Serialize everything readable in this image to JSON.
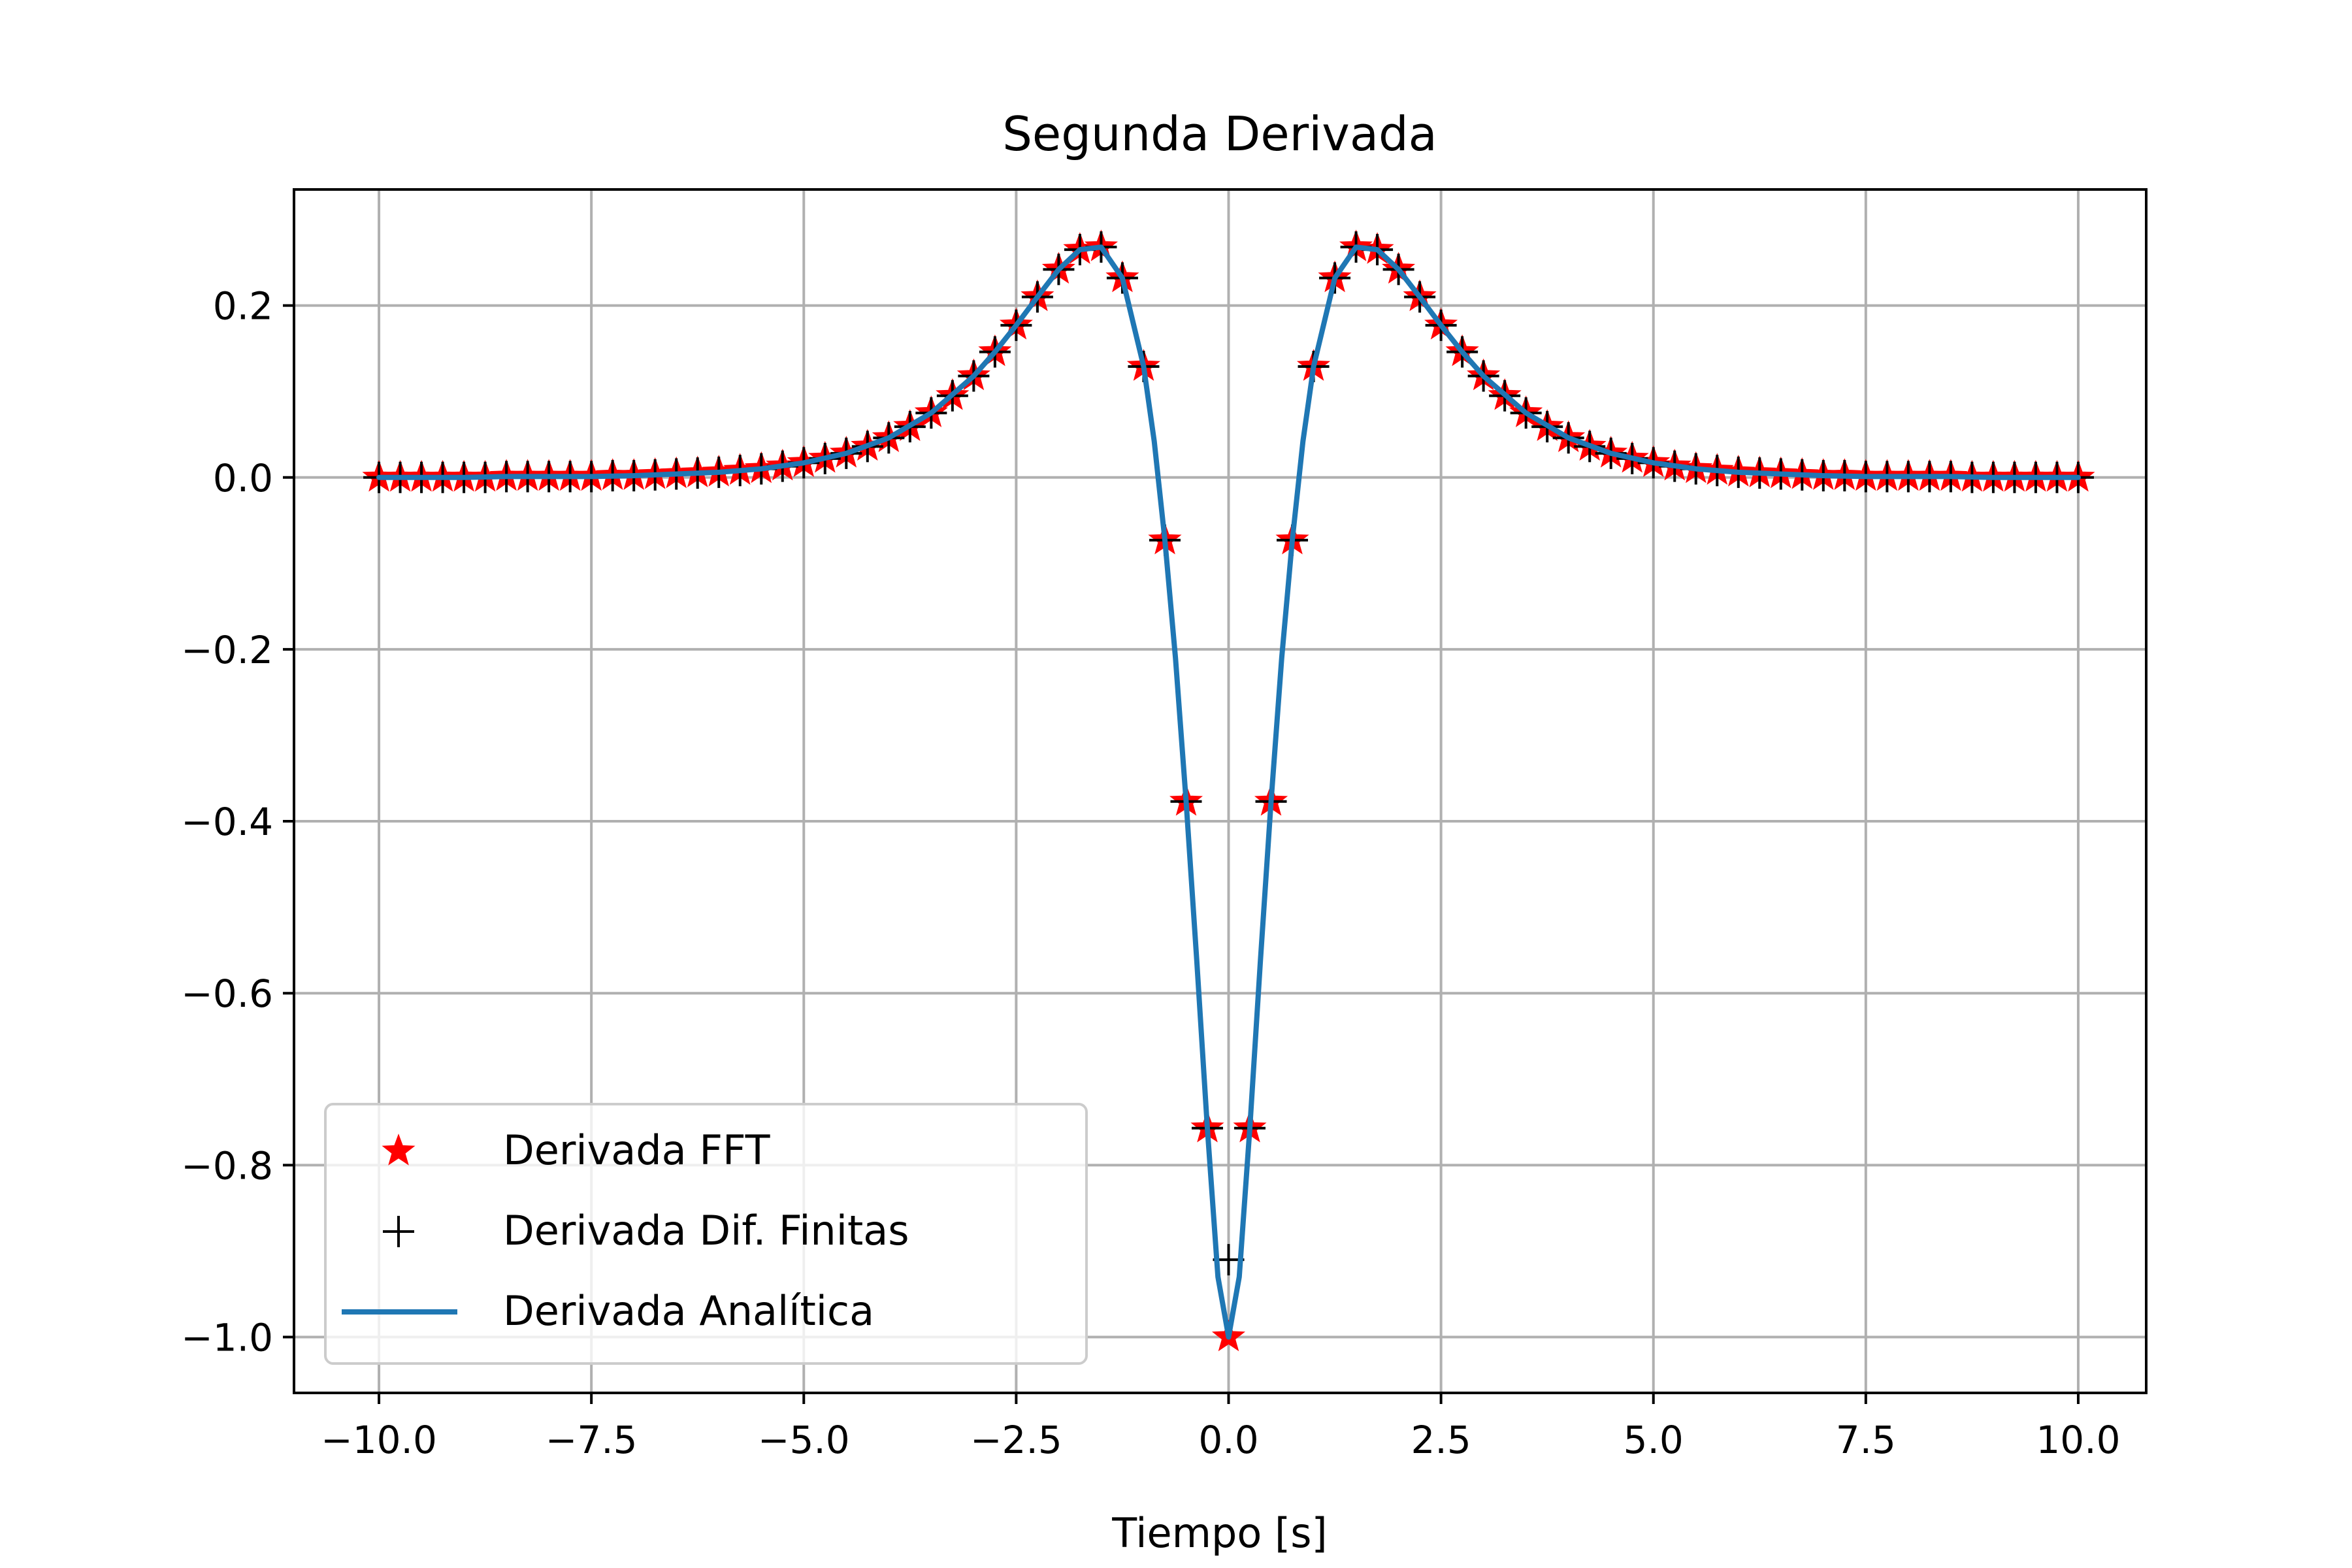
{
  "chart_data": {
    "type": "line",
    "title": "Segunda Derivada",
    "xlabel": "Tiempo [s]",
    "ylabel": "",
    "xlim": [
      -11,
      10.8
    ],
    "ylim": [
      -1.065,
      0.335
    ],
    "x_ticks": [
      -10.0,
      -7.5,
      -5.0,
      -2.5,
      0.0,
      2.5,
      5.0,
      7.5,
      10.0
    ],
    "x_tick_labels": [
      "−10.0",
      "−7.5",
      "−5.0",
      "−2.5",
      "0.0",
      "2.5",
      "5.0",
      "7.5",
      "10.0"
    ],
    "y_ticks": [
      0.2,
      0.0,
      -0.2,
      -0.4,
      -0.6,
      -0.8,
      -1.0
    ],
    "y_tick_labels": [
      "0.2",
      "0.0",
      "−0.2",
      "−0.4",
      "−0.6",
      "−0.8",
      "−1.0"
    ],
    "grid": true,
    "legend_position": "lower-left",
    "series": [
      {
        "name": "Derivada FFT",
        "marker": "star",
        "color": "#ff0000",
        "x": [
          -10,
          -9.75,
          -9.5,
          -9.25,
          -9,
          -8.75,
          -8.5,
          -8.25,
          -8,
          -7.75,
          -7.5,
          -7.25,
          -7,
          -6.75,
          -6.5,
          -6.25,
          -6,
          -5.75,
          -5.5,
          -5.25,
          -5,
          -4.75,
          -4.5,
          -4.25,
          -4,
          -3.75,
          -3.5,
          -3.25,
          -3,
          -2.75,
          -2.5,
          -2.25,
          -2,
          -1.75,
          -1.5,
          -1.25,
          -1,
          -0.75,
          -0.5,
          -0.25,
          0,
          0.25,
          0.5,
          0.75,
          1,
          1.25,
          1.5,
          1.75,
          2,
          2.25,
          2.5,
          2.75,
          3,
          3.25,
          3.5,
          3.75,
          4,
          4.25,
          4.5,
          4.75,
          5,
          5.25,
          5.5,
          5.75,
          6,
          6.25,
          6.5,
          6.75,
          7,
          7.25,
          7.5,
          7.75,
          8,
          8.25,
          8.5,
          8.75,
          9,
          9.25,
          9.5,
          9.75,
          10
        ],
        "y": [
          0.0,
          0.0,
          0.0,
          0.0,
          0.0,
          0.0,
          0.001,
          0.001,
          0.001,
          0.001,
          0.001,
          0.002,
          0.002,
          0.003,
          0.004,
          0.005,
          0.006,
          0.008,
          0.01,
          0.013,
          0.017,
          0.022,
          0.028,
          0.036,
          0.046,
          0.059,
          0.075,
          0.095,
          0.118,
          0.146,
          0.177,
          0.21,
          0.242,
          0.265,
          0.268,
          0.232,
          0.129,
          -0.073,
          -0.377,
          -0.757,
          -1.0,
          -0.757,
          -0.377,
          -0.073,
          0.129,
          0.232,
          0.268,
          0.265,
          0.242,
          0.21,
          0.177,
          0.146,
          0.118,
          0.095,
          0.075,
          0.059,
          0.046,
          0.036,
          0.028,
          0.022,
          0.017,
          0.013,
          0.01,
          0.008,
          0.006,
          0.005,
          0.004,
          0.003,
          0.002,
          0.002,
          0.001,
          0.001,
          0.001,
          0.001,
          0.001,
          0.0,
          0.0,
          0.0,
          0.0,
          0.0,
          0.0
        ]
      },
      {
        "name": "Derivada Dif. Finitas",
        "marker": "plus",
        "color": "#000000",
        "x": [
          -10,
          -9.75,
          -9.5,
          -9.25,
          -9,
          -8.75,
          -8.5,
          -8.25,
          -8,
          -7.75,
          -7.5,
          -7.25,
          -7,
          -6.75,
          -6.5,
          -6.25,
          -6,
          -5.75,
          -5.5,
          -5.25,
          -5,
          -4.75,
          -4.5,
          -4.25,
          -4,
          -3.75,
          -3.5,
          -3.25,
          -3,
          -2.75,
          -2.5,
          -2.25,
          -2,
          -1.75,
          -1.5,
          -1.25,
          -1,
          -0.75,
          -0.5,
          -0.25,
          0,
          0.25,
          0.5,
          0.75,
          1,
          1.25,
          1.5,
          1.75,
          2,
          2.25,
          2.5,
          2.75,
          3,
          3.25,
          3.5,
          3.75,
          4,
          4.25,
          4.5,
          4.75,
          5,
          5.25,
          5.5,
          5.75,
          6,
          6.25,
          6.5,
          6.75,
          7,
          7.25,
          7.5,
          7.75,
          8,
          8.25,
          8.5,
          8.75,
          9,
          9.25,
          9.5,
          9.75,
          10
        ],
        "y": [
          0.0,
          0.0,
          0.0,
          0.0,
          0.0,
          0.0,
          0.001,
          0.001,
          0.001,
          0.001,
          0.001,
          0.002,
          0.002,
          0.003,
          0.004,
          0.005,
          0.006,
          0.008,
          0.01,
          0.013,
          0.017,
          0.022,
          0.028,
          0.036,
          0.046,
          0.059,
          0.075,
          0.095,
          0.118,
          0.146,
          0.177,
          0.21,
          0.242,
          0.265,
          0.268,
          0.232,
          0.129,
          -0.073,
          -0.377,
          -0.757,
          -0.91,
          -0.757,
          -0.377,
          -0.073,
          0.129,
          0.232,
          0.268,
          0.265,
          0.242,
          0.21,
          0.177,
          0.146,
          0.118,
          0.095,
          0.075,
          0.059,
          0.046,
          0.036,
          0.028,
          0.022,
          0.017,
          0.013,
          0.01,
          0.008,
          0.006,
          0.005,
          0.004,
          0.003,
          0.002,
          0.002,
          0.001,
          0.001,
          0.001,
          0.001,
          0.001,
          0.0,
          0.0,
          0.0,
          0.0,
          0.0,
          0.0
        ]
      },
      {
        "name": "Derivada Analítica",
        "marker": "line",
        "color": "#1f77b4",
        "x": [
          -10,
          -9.5,
          -9,
          -8.5,
          -8,
          -7.5,
          -7,
          -6.5,
          -6,
          -5.5,
          -5,
          -4.5,
          -4,
          -3.5,
          -3,
          -2.75,
          -2.5,
          -2.25,
          -2,
          -1.75,
          -1.5,
          -1.25,
          -1,
          -0.875,
          -0.75,
          -0.625,
          -0.5,
          -0.375,
          -0.25,
          -0.125,
          0,
          0.125,
          0.25,
          0.375,
          0.5,
          0.625,
          0.75,
          0.875,
          1,
          1.25,
          1.5,
          1.75,
          2,
          2.25,
          2.5,
          2.75,
          3,
          3.5,
          4,
          4.5,
          5,
          5.5,
          6,
          6.5,
          7,
          7.5,
          8,
          8.5,
          9,
          9.5,
          10
        ],
        "y": [
          0.0,
          0.0,
          0.0,
          0.001,
          0.001,
          0.001,
          0.002,
          0.004,
          0.006,
          0.01,
          0.017,
          0.028,
          0.046,
          0.075,
          0.118,
          0.146,
          0.177,
          0.21,
          0.242,
          0.265,
          0.268,
          0.232,
          0.129,
          0.042,
          -0.073,
          -0.21,
          -0.377,
          -0.561,
          -0.757,
          -0.93,
          -1.0,
          -0.93,
          -0.757,
          -0.561,
          -0.377,
          -0.21,
          -0.073,
          0.042,
          0.129,
          0.232,
          0.268,
          0.265,
          0.242,
          0.21,
          0.177,
          0.146,
          0.118,
          0.075,
          0.046,
          0.028,
          0.017,
          0.01,
          0.006,
          0.004,
          0.002,
          0.001,
          0.001,
          0.001,
          0.0,
          0.0,
          0.0
        ]
      }
    ]
  }
}
